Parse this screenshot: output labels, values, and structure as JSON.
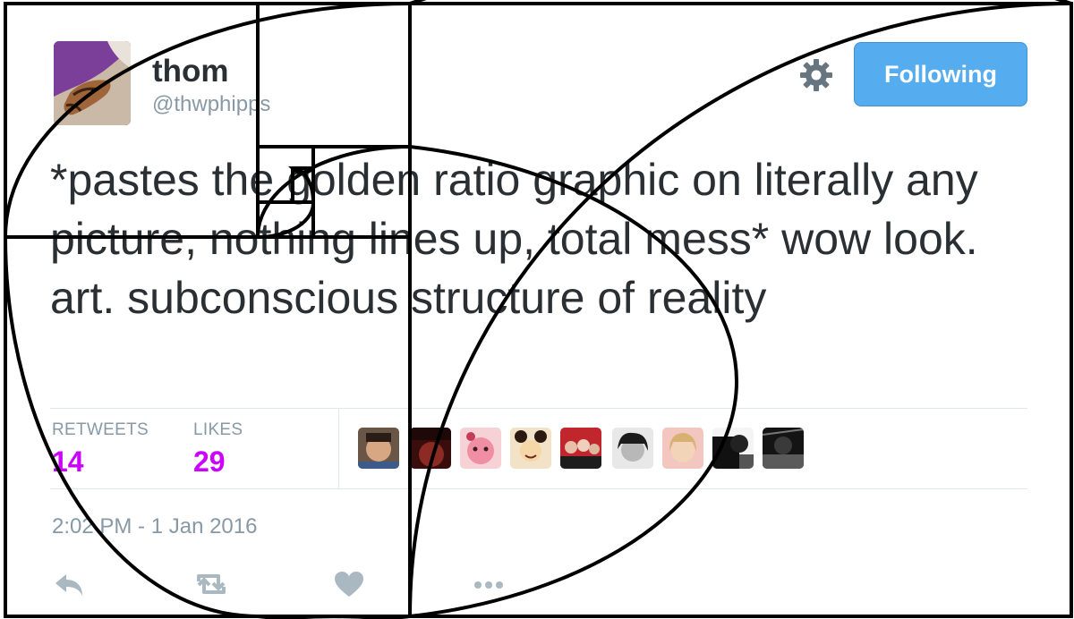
{
  "user": {
    "display_name": "thom",
    "handle": "@thwphipps",
    "avatar_icon": "horse-avatar"
  },
  "header": {
    "gear_icon": "gear-icon",
    "follow_label": "Following",
    "follow_color": "#55acee"
  },
  "tweet": {
    "text": "*pastes the golden ratio graphic on literally any picture, nothing lines up, total mess* wow look. art. subconscious structure of reality"
  },
  "stats": {
    "retweets_label": "RETWEETS",
    "retweets_count": "14",
    "likes_label": "LIKES",
    "likes_count": "29",
    "count_color": "#cc00ff"
  },
  "likers": {
    "count_shown": 9
  },
  "meta": {
    "timestamp": "2:02 PM - 1 Jan 2016"
  },
  "actions": [
    "reply-icon",
    "retweet-icon",
    "heart-icon",
    "more-icon"
  ],
  "overlay": {
    "name": "golden-ratio-spiral",
    "color": "#000000"
  }
}
